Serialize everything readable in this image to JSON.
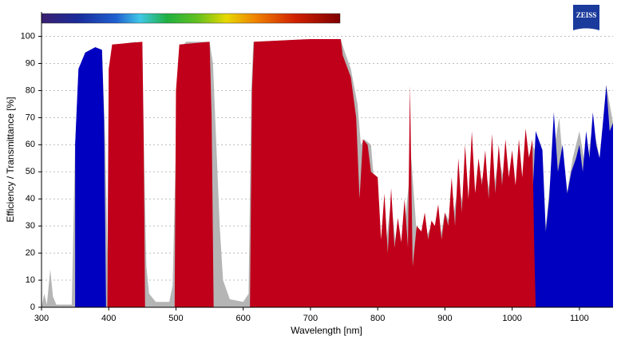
{
  "logo": "ZEISS",
  "chart_data": {
    "type": "area",
    "x_label": "Wavelength [nm]",
    "y_label": "Efficiency / Transmittance [%]",
    "xlim": [
      300,
      1150
    ],
    "ylim": [
      0,
      109
    ],
    "xticks": [
      300,
      400,
      500,
      600,
      700,
      800,
      900,
      1000,
      1100
    ],
    "yticks": [
      0,
      10,
      20,
      30,
      40,
      50,
      60,
      70,
      80,
      90,
      100
    ],
    "grid": true,
    "series": [
      {
        "color": "#b5b5b5",
        "x": [
          300,
          304,
          308,
          313,
          317,
          322,
          345,
          350,
          355,
          365,
          380,
          390,
          395,
          398,
          400,
          410,
          440,
          450,
          453,
          456,
          460,
          470,
          490,
          495,
          500,
          505,
          515,
          550,
          555,
          560,
          565,
          570,
          580,
          600,
          608,
          612,
          615,
          700,
          745,
          750,
          760,
          770,
          775,
          780,
          790,
          800,
          810,
          820,
          830,
          840,
          850,
          860,
          870,
          880,
          890,
          900,
          910,
          920,
          930,
          940,
          950,
          960,
          970,
          980,
          990,
          1000,
          1010,
          1020,
          1030,
          1040,
          1050,
          1060,
          1070,
          1080,
          1090,
          1100,
          1110,
          1120,
          1130,
          1140,
          1150
        ],
        "values": [
          0,
          5,
          1,
          14,
          4,
          1,
          1,
          60,
          88,
          94,
          96,
          95,
          60,
          20,
          88,
          97,
          98,
          96,
          50,
          15,
          5,
          2,
          2,
          8,
          60,
          95,
          98,
          98,
          90,
          60,
          30,
          10,
          3,
          2,
          5,
          80,
          98,
          99,
          99,
          95,
          88,
          75,
          60,
          62,
          60,
          30,
          18,
          40,
          15,
          30,
          55,
          20,
          25,
          30,
          22,
          35,
          30,
          45,
          35,
          40,
          45,
          50,
          40,
          55,
          45,
          50,
          40,
          52,
          60,
          55,
          30,
          55,
          70,
          40,
          55,
          65,
          50,
          68,
          55,
          82,
          68
        ]
      },
      {
        "color": "#0000c0",
        "x": [
          350,
          350,
          355,
          365,
          380,
          390,
          393,
          396,
          null,
          1018,
          1025,
          1030,
          1035,
          1045,
          1050,
          1055,
          1062,
          1068,
          1075,
          1082,
          1088,
          1095,
          1100,
          1105,
          1110,
          1115,
          1120,
          1125,
          1130,
          1135,
          1140,
          1145,
          1150
        ],
        "values": [
          0,
          60,
          88,
          94,
          96,
          95,
          70,
          0,
          null,
          0,
          5,
          40,
          65,
          58,
          28,
          40,
          72,
          50,
          60,
          42,
          50,
          55,
          60,
          50,
          65,
          55,
          72,
          60,
          55,
          68,
          82,
          65,
          68
        ]
      },
      {
        "color": "#c0001a",
        "x": [
          398,
          400,
          405,
          450,
          452,
          454,
          null,
          498,
          500,
          505,
          550,
          553,
          556,
          null,
          610,
          613,
          616,
          700,
          745,
          748,
          760,
          768,
          773,
          778,
          785,
          790,
          800,
          805,
          810,
          815,
          820,
          825,
          830,
          835,
          840,
          845,
          848,
          852,
          858,
          865,
          870,
          875,
          880,
          885,
          890,
          895,
          900,
          905,
          910,
          915,
          920,
          925,
          930,
          935,
          940,
          945,
          950,
          955,
          960,
          965,
          970,
          975,
          980,
          985,
          990,
          995,
          1000,
          1005,
          1010,
          1015,
          1020,
          1025,
          1030,
          1033,
          1035
        ],
        "values": [
          0,
          88,
          97,
          98,
          60,
          0,
          null,
          0,
          80,
          97,
          98,
          70,
          0,
          null,
          0,
          80,
          98,
          99,
          99,
          93,
          85,
          70,
          40,
          62,
          60,
          50,
          48,
          25,
          42,
          20,
          44,
          22,
          33,
          24,
          40,
          22,
          82,
          15,
          30,
          28,
          35,
          25,
          32,
          30,
          38,
          25,
          35,
          30,
          48,
          30,
          55,
          35,
          60,
          40,
          65,
          42,
          55,
          45,
          58,
          40,
          64,
          42,
          60,
          45,
          62,
          48,
          58,
          45,
          62,
          48,
          66,
          55,
          62,
          20,
          0
        ]
      }
    ]
  }
}
